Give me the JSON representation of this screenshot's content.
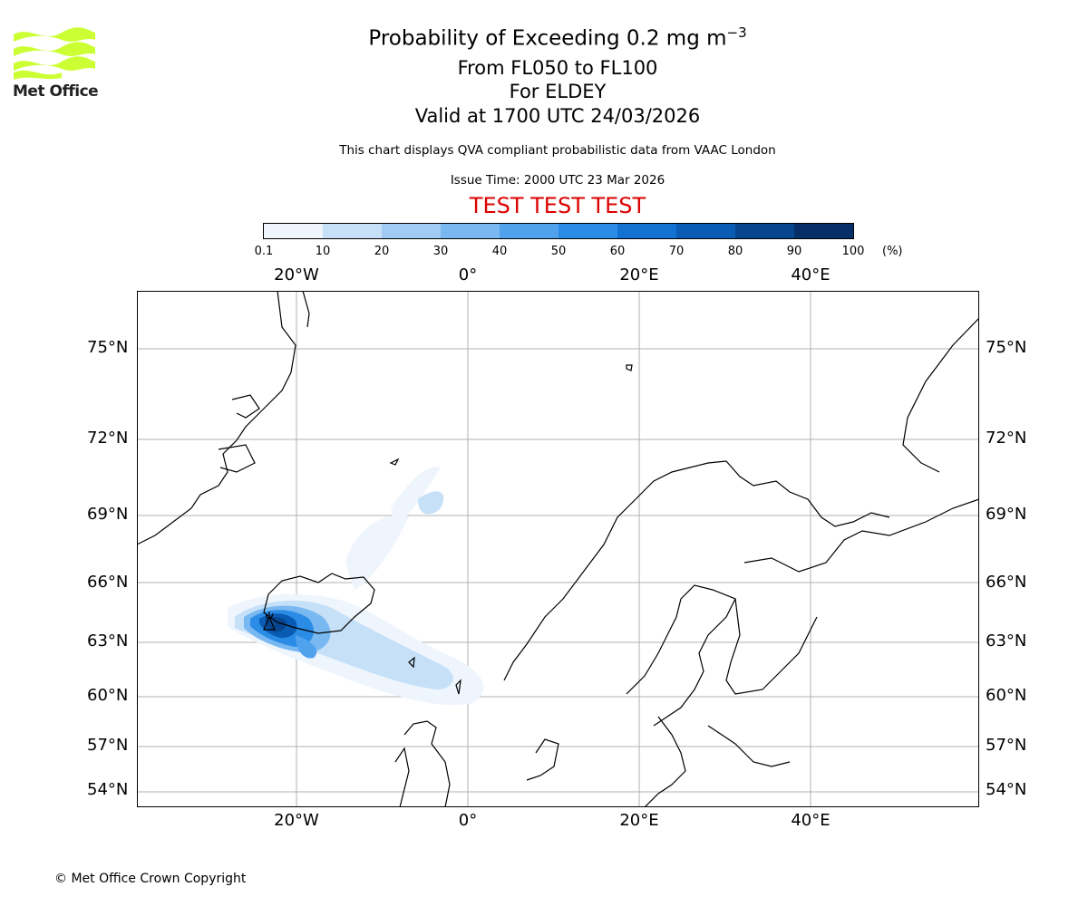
{
  "logo": {
    "text": "Met Office",
    "color": "#ccff33"
  },
  "title": {
    "line1": "Probability of Exceeding 0.2 mg m",
    "line1_exponent": "−3",
    "line2": "From FL050 to FL100",
    "line3": "For ELDEY",
    "line4": "Valid at 1700 UTC 24/03/2026"
  },
  "disclaimer": "This chart displays QVA compliant probabilistic data from VAAC London",
  "issue_time": "Issue Time: 2000 UTC 23 Mar 2026",
  "test_banner": "TEST TEST TEST",
  "test_color": "#dd0000",
  "colorbar": {
    "ticks": [
      "0.1",
      "10",
      "20",
      "30",
      "40",
      "50",
      "60",
      "70",
      "80",
      "90",
      "100"
    ],
    "unit": "(%)",
    "colors": [
      "#eef5fd",
      "#c6e0f8",
      "#a2cbf4",
      "#7ab8f1",
      "#51a2ec",
      "#2b8ce6",
      "#1271d1",
      "#0a5bb4",
      "#07468f",
      "#052f66"
    ]
  },
  "map": {
    "lon_labels": [
      "20°W",
      "0°",
      "20°E",
      "40°E"
    ],
    "lat_labels": [
      "75°N",
      "72°N",
      "69°N",
      "66°N",
      "63°N",
      "60°N",
      "57°N",
      "54°N"
    ],
    "volcano_marker": "volcano-icon"
  },
  "copyright": "© Met Office Crown Copyright"
}
